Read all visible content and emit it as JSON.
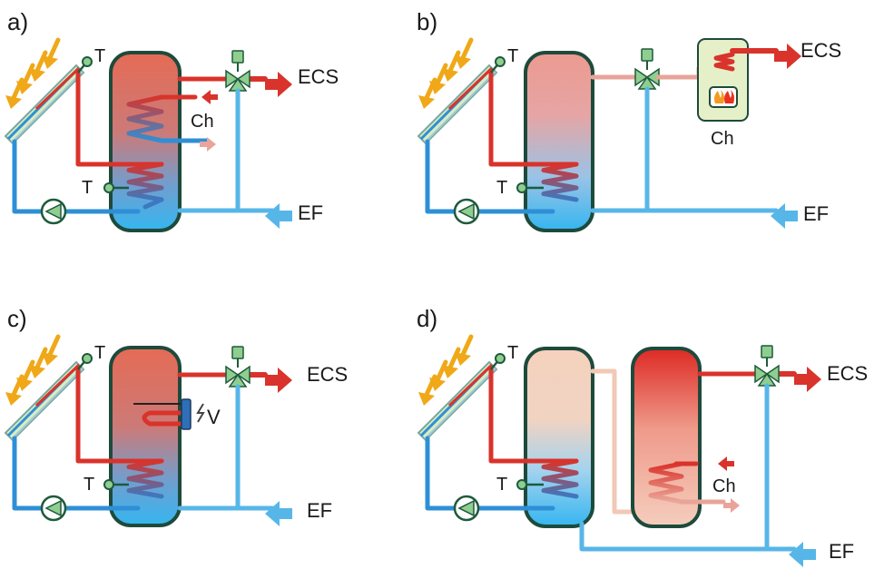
{
  "colors": {
    "hot": "#d9332b",
    "hot_light": "#e9a49a",
    "hot_pale": "#f2c8b6",
    "cold": "#2e8fd6",
    "cold_light": "#57b6e8",
    "tank_outline": "#1e4a3c",
    "sun_arrow": "#f0a818",
    "valve": "#8fce8f",
    "boiler_bg": "#e5f0c8"
  },
  "icons": [
    "sun-ray-arrow-icon",
    "solar-collector-icon",
    "temperature-sensor-icon",
    "circulation-pump-icon",
    "three-way-valve-icon",
    "electric-heater-icon",
    "boiler-flame-icon"
  ],
  "panels": [
    {
      "letter": "a)",
      "sensor_collector": "T",
      "sensor_tank": "T",
      "hot_out": "ECS",
      "cold_in": "EF",
      "heating": "Ch"
    },
    {
      "letter": "b)",
      "sensor_collector": "T",
      "sensor_tank": "T",
      "hot_out": "ECS",
      "cold_in": "EF",
      "heating": "Ch"
    },
    {
      "letter": "c)",
      "sensor_collector": "T",
      "sensor_tank": "T",
      "hot_out": "ECS",
      "cold_in": "EF",
      "electric": "V"
    },
    {
      "letter": "d)",
      "sensor_collector": "T",
      "sensor_tank": "T",
      "hot_out": "ECS",
      "cold_in": "EF",
      "heating": "Ch"
    }
  ]
}
